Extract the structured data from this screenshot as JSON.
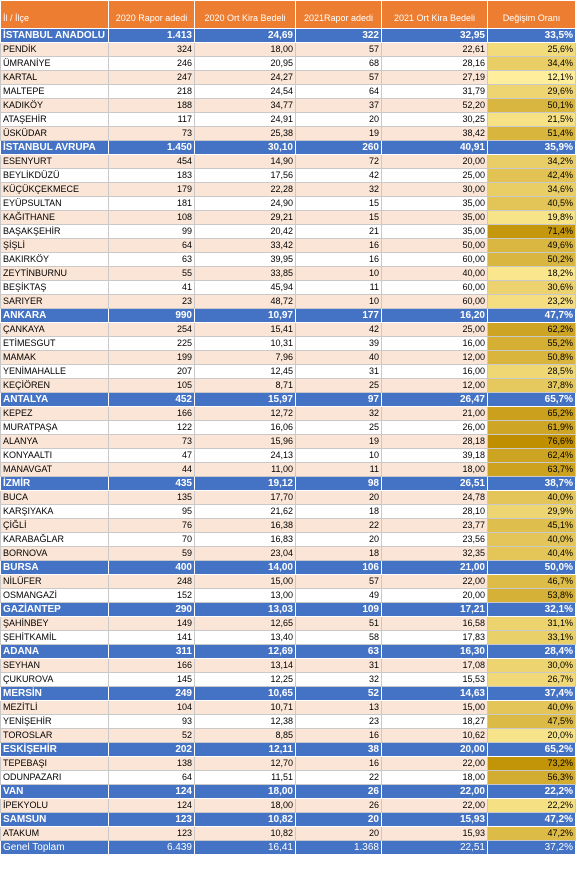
{
  "headers": [
    "İl / İlçe",
    "2020 Rapor adedi",
    "2020 Ort Kira Bedeli",
    "2021Rapor adedi",
    "2021 Ort Kira Bedeli",
    "Değişim Oranı"
  ],
  "groups": [
    {
      "city": [
        "İSTANBUL ANADOLU",
        "1.413",
        "24,69",
        "322",
        "32,95",
        "33,5%"
      ],
      "rows": [
        [
          "PENDİK",
          "324",
          "18,00",
          "57",
          "22,61",
          "25,6%"
        ],
        [
          "ÜMRANİYE",
          "246",
          "20,95",
          "68",
          "28,16",
          "34,4%"
        ],
        [
          "KARTAL",
          "247",
          "24,27",
          "57",
          "27,19",
          "12,1%"
        ],
        [
          "MALTEPE",
          "218",
          "24,54",
          "64",
          "31,79",
          "29,6%"
        ],
        [
          "KADIKÖY",
          "188",
          "34,77",
          "37",
          "52,20",
          "50,1%"
        ],
        [
          "ATAŞEHİR",
          "117",
          "24,91",
          "20",
          "30,25",
          "21,5%"
        ],
        [
          "ÜSKÜDAR",
          "73",
          "25,38",
          "19",
          "38,42",
          "51,4%"
        ]
      ]
    },
    {
      "city": [
        "İSTANBUL AVRUPA",
        "1.450",
        "30,10",
        "260",
        "40,91",
        "35,9%"
      ],
      "rows": [
        [
          "ESENYURT",
          "454",
          "14,90",
          "72",
          "20,00",
          "34,2%"
        ],
        [
          "BEYLİKDÜZÜ",
          "183",
          "17,56",
          "42",
          "25,00",
          "42,4%"
        ],
        [
          "KÜÇÜKÇEKMECE",
          "179",
          "22,28",
          "32",
          "30,00",
          "34,6%"
        ],
        [
          "EYÜPSULTAN",
          "181",
          "24,90",
          "15",
          "35,00",
          "40,5%"
        ],
        [
          "KAĞITHANE",
          "108",
          "29,21",
          "15",
          "35,00",
          "19,8%"
        ],
        [
          "BAŞAKŞEHİR",
          "99",
          "20,42",
          "21",
          "35,00",
          "71,4%"
        ],
        [
          "ŞİŞLİ",
          "64",
          "33,42",
          "16",
          "50,00",
          "49,6%"
        ],
        [
          "BAKIRKÖY",
          "63",
          "39,95",
          "16",
          "60,00",
          "50,2%"
        ],
        [
          "ZEYTİNBURNU",
          "55",
          "33,85",
          "10",
          "40,00",
          "18,2%"
        ],
        [
          "BEŞİKTAŞ",
          "41",
          "45,94",
          "11",
          "60,00",
          "30,6%"
        ],
        [
          "SARIYER",
          "23",
          "48,72",
          "10",
          "60,00",
          "23,2%"
        ]
      ]
    },
    {
      "city": [
        "ANKARA",
        "990",
        "10,97",
        "177",
        "16,20",
        "47,7%"
      ],
      "rows": [
        [
          "ÇANKAYA",
          "254",
          "15,41",
          "42",
          "25,00",
          "62,2%"
        ],
        [
          "ETİMESGUT",
          "225",
          "10,31",
          "39",
          "16,00",
          "55,2%"
        ],
        [
          "MAMAK",
          "199",
          "7,96",
          "40",
          "12,00",
          "50,8%"
        ],
        [
          "YENİMAHALLE",
          "207",
          "12,45",
          "31",
          "16,00",
          "28,5%"
        ],
        [
          "KEÇİÖREN",
          "105",
          "8,71",
          "25",
          "12,00",
          "37,8%"
        ]
      ]
    },
    {
      "city": [
        "ANTALYA",
        "452",
        "15,97",
        "97",
        "26,47",
        "65,7%"
      ],
      "rows": [
        [
          "KEPEZ",
          "166",
          "12,72",
          "32",
          "21,00",
          "65,2%"
        ],
        [
          "MURATPAŞA",
          "122",
          "16,06",
          "25",
          "26,00",
          "61,9%"
        ],
        [
          "ALANYA",
          "73",
          "15,96",
          "19",
          "28,18",
          "76,6%"
        ],
        [
          "KONYAALTI",
          "47",
          "24,13",
          "10",
          "39,18",
          "62,4%"
        ],
        [
          "MANAVGAT",
          "44",
          "11,00",
          "11",
          "18,00",
          "63,7%"
        ]
      ]
    },
    {
      "city": [
        "İZMİR",
        "435",
        "19,12",
        "98",
        "26,51",
        "38,7%"
      ],
      "rows": [
        [
          "BUCA",
          "135",
          "17,70",
          "20",
          "24,78",
          "40,0%"
        ],
        [
          "KARŞIYAKA",
          "95",
          "21,62",
          "18",
          "28,10",
          "29,9%"
        ],
        [
          "ÇİĞLİ",
          "76",
          "16,38",
          "22",
          "23,77",
          "45,1%"
        ],
        [
          "KARABAĞLAR",
          "70",
          "16,83",
          "20",
          "23,56",
          "40,0%"
        ],
        [
          "BORNOVA",
          "59",
          "23,04",
          "18",
          "32,35",
          "40,4%"
        ]
      ]
    },
    {
      "city": [
        "BURSA",
        "400",
        "14,00",
        "106",
        "21,00",
        "50,0%"
      ],
      "rows": [
        [
          "NİLÜFER",
          "248",
          "15,00",
          "57",
          "22,00",
          "46,7%"
        ],
        [
          "OSMANGAZİ",
          "152",
          "13,00",
          "49",
          "20,00",
          "53,8%"
        ]
      ]
    },
    {
      "city": [
        "GAZİANTEP",
        "290",
        "13,03",
        "109",
        "17,21",
        "32,1%"
      ],
      "rows": [
        [
          "ŞAHİNBEY",
          "149",
          "12,65",
          "51",
          "16,58",
          "31,1%"
        ],
        [
          "ŞEHİTKAMİL",
          "141",
          "13,40",
          "58",
          "17,83",
          "33,1%"
        ]
      ]
    },
    {
      "city": [
        "ADANA",
        "311",
        "12,69",
        "63",
        "16,30",
        "28,4%"
      ],
      "rows": [
        [
          "SEYHAN",
          "166",
          "13,14",
          "31",
          "17,08",
          "30,0%"
        ],
        [
          "ÇUKUROVA",
          "145",
          "12,25",
          "32",
          "15,53",
          "26,7%"
        ]
      ]
    },
    {
      "city": [
        "MERSİN",
        "249",
        "10,65",
        "52",
        "14,63",
        "37,4%"
      ],
      "rows": [
        [
          "MEZİTLİ",
          "104",
          "10,71",
          "13",
          "15,00",
          "40,0%"
        ],
        [
          "YENİŞEHİR",
          "93",
          "12,38",
          "23",
          "18,27",
          "47,5%"
        ],
        [
          "TOROSLAR",
          "52",
          "8,85",
          "16",
          "10,62",
          "20,0%"
        ]
      ]
    },
    {
      "city": [
        "ESKİŞEHİR",
        "202",
        "12,11",
        "38",
        "20,00",
        "65,2%"
      ],
      "rows": [
        [
          "TEPEBAŞI",
          "138",
          "12,70",
          "16",
          "22,00",
          "73,2%"
        ],
        [
          "ODUNPAZARI",
          "64",
          "11,51",
          "22",
          "18,00",
          "56,3%"
        ]
      ]
    },
    {
      "city": [
        "VAN",
        "124",
        "18,00",
        "26",
        "22,00",
        "22,2%"
      ],
      "rows": [
        [
          "İPEKYOLU",
          "124",
          "18,00",
          "26",
          "22,00",
          "22,2%"
        ]
      ]
    },
    {
      "city": [
        "SAMSUN",
        "123",
        "10,82",
        "20",
        "15,93",
        "47,2%"
      ],
      "rows": [
        [
          "ATAKUM",
          "123",
          "10,82",
          "20",
          "15,93",
          "47,2%"
        ]
      ]
    }
  ],
  "total": [
    "Genel Toplam",
    "6.439",
    "16,41",
    "1.368",
    "22,51",
    "37,2%"
  ],
  "colors": {
    "header_bg": "#ed7d31",
    "city_bg": "#4472c4",
    "band_odd": "#fbe5d6",
    "band_even": "#ffffff",
    "scale_low": "#ffef9c",
    "scale_high": "#bf8f00"
  }
}
